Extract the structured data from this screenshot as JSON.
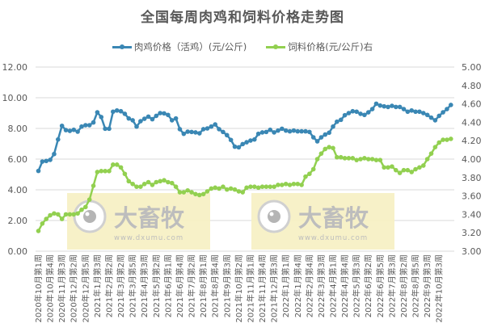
{
  "chart_data": {
    "type": "line",
    "title": "全国每周肉鸡和饲料价格走势图",
    "xlabel": "",
    "ylabel": "",
    "y2label": "",
    "ylim": [
      0,
      12
    ],
    "y2lim": [
      3.0,
      5.0
    ],
    "yticks": [
      "0.00",
      "2.00",
      "4.00",
      "6.00",
      "8.00",
      "10.00",
      "12.00"
    ],
    "y2ticks": [
      "3.00",
      "3.20",
      "3.40",
      "3.60",
      "3.80",
      "4.00",
      "4.20",
      "4.40",
      "4.60",
      "4.80",
      "5.00"
    ],
    "grid": true,
    "legend_position": "top",
    "x_tick_labels": [
      "2020年10月第1周",
      "2020年10月第4周",
      "2020年11月第3周",
      "2020年12月第2周",
      "2020年12月第5周",
      "2021年1月第3周",
      "2021年2月第2周",
      "2021年3月第2周",
      "2021年3月第5周",
      "2021年4月第3周",
      "2021年5月第2周",
      "2021年6月第1周",
      "2021年6月第4周",
      "2021年7月第2周",
      "2021年8月第1周",
      "2021年8月第4周",
      "2021年9月第3周",
      "2021年10月第2周",
      "2021年11月第1周",
      "2021年11月第4周",
      "2021年12月第3周",
      "2022年1月第1周",
      "2022年1月第4周",
      "2022年2月第4周",
      "2022年3月第3周",
      "2022年4月第1周",
      "2022年4月第4周",
      "2022年5月第3周",
      "2022年6月第2周",
      "2022年6月第5周",
      "2022年7月第3周",
      "2022年8月第2周",
      "2022年8月第5周",
      "2022年9月第3周",
      "2022年10月第3周"
    ],
    "x_tick_every": 3,
    "point_count": 106,
    "series": [
      {
        "name": "肉鸡价格（活鸡）(元/公斤)",
        "axis": "left",
        "color": "#3a87b4",
        "values": [
          5.23,
          5.84,
          5.88,
          5.95,
          6.33,
          7.28,
          8.17,
          7.89,
          7.84,
          7.91,
          7.79,
          8.12,
          8.21,
          8.21,
          8.39,
          9.05,
          8.74,
          7.98,
          7.98,
          9.09,
          9.17,
          9.12,
          8.95,
          8.65,
          8.53,
          8.12,
          8.47,
          8.63,
          8.77,
          8.6,
          8.82,
          9.0,
          8.98,
          8.88,
          8.53,
          8.65,
          7.95,
          7.65,
          7.79,
          7.77,
          7.74,
          7.68,
          7.95,
          8.0,
          8.12,
          8.26,
          7.95,
          7.77,
          7.56,
          7.25,
          6.81,
          6.77,
          6.98,
          7.1,
          7.21,
          7.28,
          7.65,
          7.74,
          7.77,
          7.91,
          7.74,
          7.86,
          7.98,
          7.86,
          7.81,
          7.86,
          7.81,
          7.81,
          7.81,
          7.77,
          7.42,
          7.16,
          7.42,
          7.6,
          7.72,
          8.12,
          8.44,
          8.56,
          8.86,
          9.0,
          9.12,
          9.09,
          8.95,
          8.88,
          9.05,
          9.26,
          9.61,
          9.49,
          9.44,
          9.4,
          9.47,
          9.4,
          9.4,
          9.26,
          9.09,
          9.17,
          9.09,
          9.09,
          9.0,
          8.88,
          8.7,
          8.53,
          8.82,
          9.05,
          9.26,
          9.53
        ]
      },
      {
        "name": "饲料价格(元/公斤)右",
        "axis": "right",
        "color": "#92d050",
        "values": [
          3.22,
          3.3,
          3.35,
          3.39,
          3.41,
          3.4,
          3.35,
          3.4,
          3.4,
          3.4,
          3.41,
          3.45,
          3.48,
          3.56,
          3.71,
          3.86,
          3.87,
          3.87,
          3.87,
          3.94,
          3.94,
          3.91,
          3.84,
          3.76,
          3.73,
          3.7,
          3.7,
          3.73,
          3.75,
          3.72,
          3.75,
          3.76,
          3.77,
          3.75,
          3.74,
          3.7,
          3.64,
          3.64,
          3.66,
          3.64,
          3.62,
          3.61,
          3.62,
          3.65,
          3.68,
          3.69,
          3.68,
          3.7,
          3.67,
          3.68,
          3.67,
          3.65,
          3.64,
          3.69,
          3.7,
          3.7,
          3.69,
          3.7,
          3.7,
          3.7,
          3.7,
          3.72,
          3.72,
          3.73,
          3.72,
          3.73,
          3.73,
          3.72,
          3.81,
          3.84,
          3.89,
          4.0,
          4.06,
          4.11,
          4.13,
          4.12,
          4.02,
          4.02,
          4.01,
          4.01,
          4.01,
          3.99,
          4.0,
          4.01,
          4.0,
          4.0,
          3.99,
          3.99,
          3.91,
          3.91,
          3.92,
          3.88,
          3.85,
          3.88,
          3.88,
          3.86,
          3.89,
          3.91,
          3.93,
          4.0,
          4.06,
          4.13,
          4.18,
          4.21,
          4.21,
          4.22
        ]
      }
    ]
  },
  "watermark": {
    "brand": "大畜牧",
    "url": "www.dxumu.com",
    "count": 2
  },
  "colors": {
    "title": "#595959",
    "axis_text": "#595959",
    "gridline": "#d9d9d9",
    "watermark_bg": "#f6efc2",
    "watermark_text": "#bdbdbd"
  }
}
